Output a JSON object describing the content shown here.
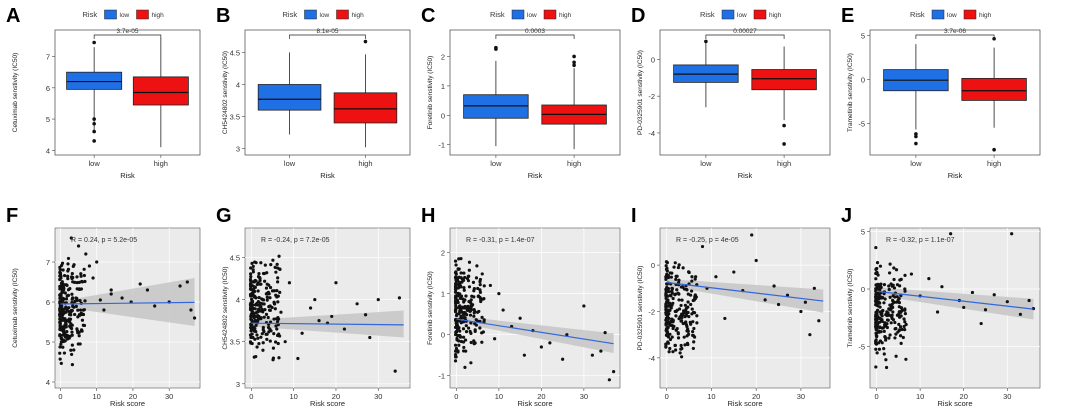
{
  "figure": {
    "legend_title": "Risk",
    "legend_items": [
      {
        "label": "low",
        "color": "#1f6fe5"
      },
      {
        "label": "high",
        "color": "#ee1111"
      }
    ],
    "fit_line_color": "#3366dd",
    "ci_color": "#c8c8c8"
  },
  "chart_data": [
    {
      "panel": "A",
      "type": "box",
      "xlabel": "Risk",
      "ylabel": "Cetuximab senstivity (IC50)",
      "categories": [
        "low",
        "high"
      ],
      "ylim": [
        3.85,
        7.85
      ],
      "yticks": [
        4,
        5,
        6,
        7
      ],
      "pvalue": "3.7e-05",
      "boxes": [
        {
          "group": "low",
          "min": 4.6,
          "q1": 5.95,
          "median": 6.2,
          "q3": 6.5,
          "max": 7.3,
          "outliers": [
            7.45,
            5.0,
            4.85,
            4.6,
            4.3
          ]
        },
        {
          "group": "high",
          "min": 4.1,
          "q1": 5.45,
          "median": 5.85,
          "q3": 6.35,
          "max": 7.6,
          "outliers": []
        }
      ]
    },
    {
      "panel": "B",
      "type": "box",
      "xlabel": "Risk",
      "ylabel": "CH5424802 senstivity (IC50)",
      "categories": [
        "low",
        "high"
      ],
      "ylim": [
        2.9,
        4.85
      ],
      "yticks": [
        3.0,
        3.5,
        4.0,
        4.5
      ],
      "pvalue": "8.1e-05",
      "boxes": [
        {
          "group": "low",
          "min": 3.22,
          "q1": 3.6,
          "median": 3.77,
          "q3": 4.0,
          "max": 4.5,
          "outliers": []
        },
        {
          "group": "high",
          "min": 3.02,
          "q1": 3.4,
          "median": 3.62,
          "q3": 3.87,
          "max": 4.47,
          "outliers": [
            4.67
          ]
        }
      ]
    },
    {
      "panel": "C",
      "type": "box",
      "xlabel": "Risk",
      "ylabel": "Foretinib senstivity (IC50)",
      "categories": [
        "low",
        "high"
      ],
      "ylim": [
        -1.35,
        2.9
      ],
      "yticks": [
        -1,
        0,
        1,
        2
      ],
      "pvalue": "0.0003",
      "boxes": [
        {
          "group": "low",
          "min": -1.05,
          "q1": -0.1,
          "median": 0.32,
          "q3": 0.7,
          "max": 1.85,
          "outliers": [
            2.3,
            2.25
          ]
        },
        {
          "group": "high",
          "min": -1.15,
          "q1": -0.3,
          "median": 0.03,
          "q3": 0.35,
          "max": 1.6,
          "outliers": [
            2.0,
            1.8,
            1.7
          ]
        }
      ]
    },
    {
      "panel": "D",
      "type": "box",
      "xlabel": "Risk",
      "ylabel": "PD-0325901 senstivity (IC50)",
      "categories": [
        "low",
        "high"
      ],
      "ylim": [
        -5.2,
        1.6
      ],
      "yticks": [
        -4,
        -2,
        0
      ],
      "pvalue": "0.00027",
      "boxes": [
        {
          "group": "low",
          "min": -2.6,
          "q1": -1.25,
          "median": -0.8,
          "q3": -0.3,
          "max": 0.9,
          "outliers": [
            0.98
          ]
        },
        {
          "group": "high",
          "min": -3.3,
          "q1": -1.65,
          "median": -1.05,
          "q3": -0.55,
          "max": 0.7,
          "outliers": [
            -3.6,
            -4.6
          ]
        }
      ]
    },
    {
      "panel": "E",
      "type": "box",
      "xlabel": "Risk",
      "ylabel": "Trametinib senstivity (IC50)",
      "categories": [
        "low",
        "high"
      ],
      "ylim": [
        -8.6,
        5.6
      ],
      "yticks": [
        -5,
        0,
        5
      ],
      "pvalue": "3.7e-06",
      "boxes": [
        {
          "group": "low",
          "min": -5.7,
          "q1": -1.3,
          "median": -0.1,
          "q3": 1.1,
          "max": 4.0,
          "outliers": [
            -6.2,
            -6.5,
            -7.3
          ]
        },
        {
          "group": "high",
          "min": -5.5,
          "q1": -2.4,
          "median": -1.3,
          "q3": 0.1,
          "max": 3.6,
          "outliers": [
            4.6,
            -8.0
          ]
        }
      ]
    },
    {
      "panel": "F",
      "type": "scatter",
      "xlabel": "Risk score",
      "ylabel": "Cetuximab senstivity (IC50)",
      "xlim": [
        -1.5,
        38.5
      ],
      "ylim": [
        3.85,
        7.85
      ],
      "xticks": [
        0,
        10,
        20,
        30
      ],
      "yticks": [
        4,
        5,
        6,
        7
      ],
      "annotation": "R = 0.24, p = 5.2e-05",
      "fit": {
        "y0": 5.95,
        "y1": 5.99
      },
      "ci": {
        "lo0": 5.88,
        "hi0": 6.02,
        "lo1": 5.4,
        "hi1": 6.6
      },
      "points": [
        [
          14,
          6.2
        ],
        [
          10,
          7.0
        ],
        [
          19.5,
          6.0
        ],
        [
          22,
          6.45
        ],
        [
          30,
          6.0
        ],
        [
          37,
          5.6
        ],
        [
          36,
          5.8
        ],
        [
          14,
          6.3
        ],
        [
          9,
          6.6
        ],
        [
          11,
          6.05
        ],
        [
          33,
          6.4
        ],
        [
          12,
          5.8
        ],
        [
          7,
          7.2
        ],
        [
          8,
          6.9
        ],
        [
          6,
          5.7
        ],
        [
          24,
          6.3
        ],
        [
          17,
          6.1
        ],
        [
          26,
          5.9
        ],
        [
          35,
          6.5
        ],
        [
          3,
          7.6
        ],
        [
          5,
          7.4
        ]
      ]
    },
    {
      "panel": "G",
      "type": "scatter",
      "xlabel": "Risk score",
      "ylabel": "CH5424802 senstivity (IC50)",
      "xlim": [
        -1.5,
        37.5
      ],
      "ylim": [
        2.95,
        4.85
      ],
      "xticks": [
        0,
        10,
        20,
        30
      ],
      "yticks": [
        3.0,
        3.5,
        4.0,
        4.5
      ],
      "annotation": "R = -0.24, p = 7.2e-05",
      "fit": {
        "y0": 3.72,
        "y1": 3.7
      },
      "ci": {
        "lo0": 3.68,
        "hi0": 3.76,
        "lo1": 3.55,
        "hi1": 3.87
      },
      "points": [
        [
          15,
          4.0
        ],
        [
          20,
          4.2
        ],
        [
          30,
          4.0
        ],
        [
          35,
          4.02
        ],
        [
          27,
          3.82
        ],
        [
          18,
          3.72
        ],
        [
          12,
          3.6
        ],
        [
          22,
          3.65
        ],
        [
          9,
          4.2
        ],
        [
          11,
          3.3
        ],
        [
          28,
          3.55
        ],
        [
          34,
          3.15
        ],
        [
          16,
          3.75
        ],
        [
          25,
          3.95
        ],
        [
          14,
          3.9
        ],
        [
          7,
          3.85
        ],
        [
          8,
          3.5
        ],
        [
          19,
          3.8
        ]
      ]
    },
    {
      "panel": "H",
      "type": "scatter",
      "xlabel": "Risk score",
      "ylabel": "Foretinib senstivity (IC50)",
      "xlim": [
        -1.5,
        38.5
      ],
      "ylim": [
        -1.3,
        2.6
      ],
      "xticks": [
        0,
        10,
        20,
        30
      ],
      "yticks": [
        -1,
        0,
        1,
        2
      ],
      "annotation": "R = -0.31, p = 1.4e-07",
      "fit": {
        "y0": 0.38,
        "y1": -0.22
      },
      "ci": {
        "lo0": 0.3,
        "hi0": 0.46,
        "lo1": -0.45,
        "hi1": 0.03
      },
      "points": [
        [
          10,
          1.0
        ],
        [
          15,
          0.4
        ],
        [
          18,
          0.1
        ],
        [
          20,
          -0.3
        ],
        [
          30,
          0.7
        ],
        [
          32,
          -0.5
        ],
        [
          34,
          -0.4
        ],
        [
          36,
          -1.1
        ],
        [
          22,
          -0.2
        ],
        [
          13,
          0.2
        ],
        [
          9,
          -0.1
        ],
        [
          26,
          0.0
        ],
        [
          25,
          -0.6
        ],
        [
          11,
          0.6
        ],
        [
          16,
          -0.5
        ],
        [
          35,
          0.05
        ],
        [
          37,
          -0.9
        ],
        [
          8,
          1.2
        ]
      ]
    },
    {
      "panel": "I",
      "type": "scatter",
      "xlabel": "Risk score",
      "ylabel": "PD-0325901 senstivity (IC50)",
      "xlim": [
        -1.5,
        36.5
      ],
      "ylim": [
        -5.3,
        1.6
      ],
      "xticks": [
        0,
        10,
        20,
        30
      ],
      "yticks": [
        -4,
        -2,
        0
      ],
      "annotation": "R = -0.25, p = 4e-05",
      "fit": {
        "y0": -0.75,
        "y1": -1.55
      },
      "ci": {
        "lo0": -0.9,
        "hi0": -0.6,
        "lo1": -2.05,
        "hi1": -1.05
      },
      "points": [
        [
          15,
          -0.3
        ],
        [
          19,
          1.3
        ],
        [
          25,
          -1.7
        ],
        [
          30,
          -2.0
        ],
        [
          34,
          -2.4
        ],
        [
          32,
          -3.0
        ],
        [
          33,
          -1.0
        ],
        [
          11,
          -0.5
        ],
        [
          9,
          -1.0
        ],
        [
          20,
          0.2
        ],
        [
          24,
          -0.9
        ],
        [
          27,
          -1.3
        ],
        [
          13,
          -2.3
        ],
        [
          17,
          -1.1
        ],
        [
          22,
          -1.5
        ],
        [
          8,
          0.8
        ],
        [
          31,
          -1.6
        ]
      ]
    },
    {
      "panel": "J",
      "type": "scatter",
      "xlabel": "Risk score",
      "ylabel": "Trametinib senstivity (IC50)",
      "xlim": [
        -1.5,
        37.5
      ],
      "ylim": [
        -8.6,
        5.3
      ],
      "xticks": [
        0,
        10,
        20,
        30
      ],
      "yticks": [
        -5,
        0,
        5
      ],
      "annotation": "R = -0.32, p = 1.1e-07",
      "fit": {
        "y0": -0.2,
        "y1": -1.75
      },
      "ci": {
        "lo0": -0.55,
        "hi0": 0.15,
        "lo1": -2.65,
        "hi1": -0.85
      },
      "points": [
        [
          10,
          -0.6
        ],
        [
          15,
          0.2
        ],
        [
          19,
          -1.0
        ],
        [
          25,
          -1.8
        ],
        [
          30,
          -1.1
        ],
        [
          33,
          -2.2
        ],
        [
          35,
          -1.0
        ],
        [
          27,
          -0.5
        ],
        [
          20,
          -1.6
        ],
        [
          12,
          0.9
        ],
        [
          22,
          -0.3
        ],
        [
          24,
          -3.0
        ],
        [
          14,
          -2.0
        ],
        [
          17,
          4.8
        ],
        [
          31,
          4.8
        ],
        [
          36,
          -1.7
        ],
        [
          8,
          1.3
        ]
      ]
    }
  ]
}
